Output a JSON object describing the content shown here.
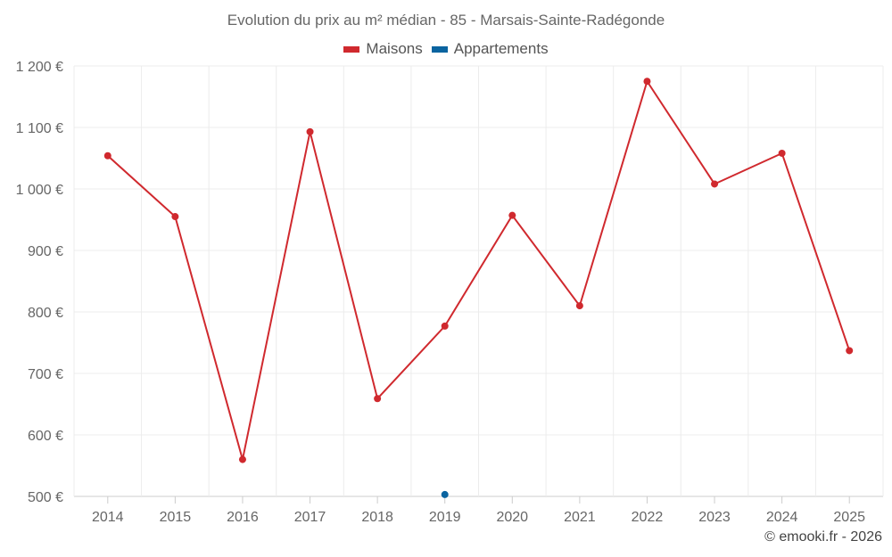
{
  "chart_data": {
    "type": "line",
    "title": "Evolution du prix au m² médian - 85 - Marsais-Sainte-Radégonde",
    "categories": [
      "2014",
      "2015",
      "2016",
      "2017",
      "2018",
      "2019",
      "2020",
      "2021",
      "2022",
      "2023",
      "2024",
      "2025"
    ],
    "series": [
      {
        "name": "Maisons",
        "color": "#d0292e",
        "values": [
          1054,
          955,
          560,
          1093,
          659,
          777,
          957,
          810,
          1175,
          1008,
          1058,
          737
        ]
      },
      {
        "name": "Appartements",
        "color": "#0a64a0",
        "values": [
          null,
          null,
          null,
          null,
          null,
          503,
          null,
          null,
          null,
          null,
          null,
          null
        ]
      }
    ],
    "yticks": [
      "500 €",
      "600 €",
      "700 €",
      "800 €",
      "900 €",
      "1 000 €",
      "1 100 €",
      "1 200 €"
    ],
    "ytick_values": [
      500,
      600,
      700,
      800,
      900,
      1000,
      1100,
      1200
    ],
    "ylim": [
      500,
      1200
    ],
    "xlabel": "",
    "ylabel": "",
    "grid": true,
    "legend_position": "top-center"
  },
  "credit": "© emooki.fr - 2026"
}
